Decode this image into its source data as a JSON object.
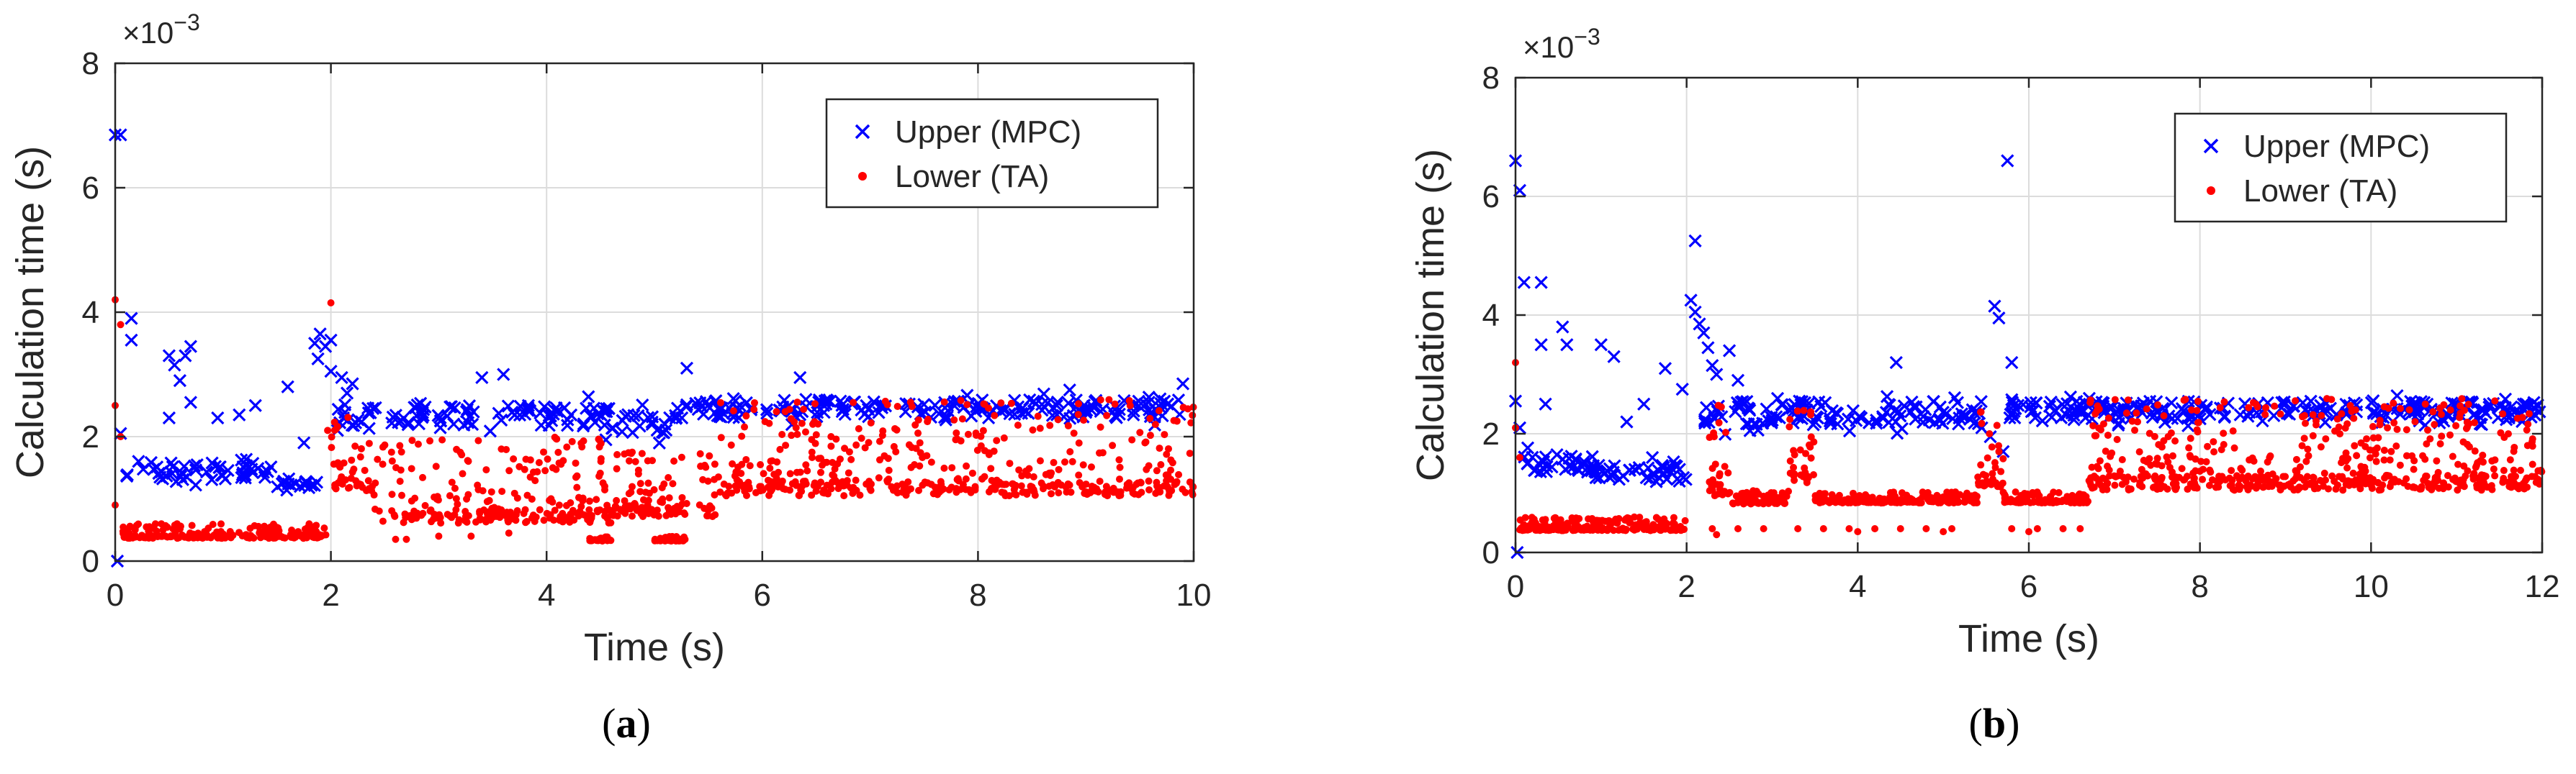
{
  "chart_data": [
    {
      "type": "scatter",
      "panel_label_prefix": "(",
      "panel_label_letter": "a",
      "panel_label_suffix": ")",
      "xlabel": "Time (s)",
      "ylabel": "Calculation time (s)",
      "exponent_label": "×10",
      "exponent_power": "−3",
      "xlim": [
        0,
        10
      ],
      "ylim": [
        0,
        8
      ],
      "xticks": [
        0,
        2,
        4,
        6,
        8,
        10
      ],
      "yticks": [
        0,
        2,
        4,
        6,
        8
      ],
      "grid": true,
      "legend_position": "top-right",
      "series": [
        {
          "name": "Upper (MPC)",
          "marker": "x",
          "color": "#0000ff",
          "segments": [
            {
              "x0": 0.1,
              "x1": 1.45,
              "y": 1.45,
              "spread": 0.35
            },
            {
              "x0": 1.45,
              "x1": 1.9,
              "y": 1.25,
              "spread": 0.15
            },
            {
              "x0": 2.05,
              "x1": 4.6,
              "y": 2.35,
              "spread": 0.35
            },
            {
              "x0": 4.6,
              "x1": 5.2,
              "y": 2.2,
              "spread": 0.35
            },
            {
              "x0": 5.2,
              "x1": 10,
              "y": 2.45,
              "spread": 0.3
            }
          ],
          "extra_points": [
            [
              0.0,
              6.85
            ],
            [
              0.05,
              6.85
            ],
            [
              0.15,
              3.9
            ],
            [
              0.15,
              3.55
            ],
            [
              0.05,
              2.05
            ],
            [
              0.5,
              3.3
            ],
            [
              0.55,
              3.15
            ],
            [
              0.65,
              3.3
            ],
            [
              0.7,
              3.45
            ],
            [
              0.6,
              2.9
            ],
            [
              0.5,
              2.3
            ],
            [
              0.7,
              2.55
            ],
            [
              0.95,
              2.3
            ],
            [
              1.15,
              2.35
            ],
            [
              1.3,
              2.5
            ],
            [
              1.6,
              2.8
            ],
            [
              1.75,
              1.9
            ],
            [
              1.85,
              3.5
            ],
            [
              1.9,
              3.65
            ],
            [
              1.95,
              3.45
            ],
            [
              2.0,
              3.55
            ],
            [
              1.88,
              3.25
            ],
            [
              2.0,
              3.05
            ],
            [
              2.1,
              2.95
            ],
            [
              2.2,
              2.85
            ],
            [
              2.15,
              2.7
            ],
            [
              3.4,
              2.95
            ],
            [
              3.6,
              3.0
            ],
            [
              5.3,
              3.1
            ],
            [
              4.55,
              1.95
            ],
            [
              6.35,
              2.95
            ],
            [
              8.85,
              2.75
            ],
            [
              9.9,
              2.85
            ],
            [
              0.02,
              0.0
            ]
          ]
        },
        {
          "name": "Lower (TA)",
          "marker": "dot",
          "color": "#ff0000",
          "segments": [
            {
              "x0": 0.05,
              "x1": 1.98,
              "y": 0.45,
              "spread": 0.15
            },
            {
              "x0": 2.0,
              "x1": 2.4,
              "y": 1.6,
              "spread": 0.9
            },
            {
              "x0": 2.4,
              "x1": 4.6,
              "y": 1.1,
              "spread": 0.9
            },
            {
              "x0": 4.4,
              "x1": 4.6,
              "y": 0.35,
              "spread": 0.05
            },
            {
              "x0": 5.0,
              "x1": 5.3,
              "y": 0.35,
              "spread": 0.05
            },
            {
              "x0": 4.6,
              "x1": 5.6,
              "y": 1.1,
              "spread": 0.7
            },
            {
              "x0": 5.6,
              "x1": 10,
              "y": 1.6,
              "spread": 1.0
            }
          ],
          "extra_points": [
            [
              0.0,
              4.2
            ],
            [
              0.0,
              2.5
            ],
            [
              0.05,
              3.8
            ],
            [
              0.05,
              2.0
            ],
            [
              0.0,
              0.9
            ],
            [
              2.0,
              4.15
            ],
            [
              1.97,
              2.1
            ],
            [
              2.6,
              0.35
            ],
            [
              2.7,
              0.35
            ],
            [
              3.0,
              0.4
            ],
            [
              3.3,
              0.4
            ],
            [
              3.65,
              0.45
            ]
          ]
        }
      ]
    },
    {
      "type": "scatter",
      "panel_label_prefix": "(",
      "panel_label_letter": "b",
      "panel_label_suffix": ")",
      "xlabel": "Time (s)",
      "ylabel": "Calculation time (s)",
      "exponent_label": "×10",
      "exponent_power": "−3",
      "xlim": [
        0,
        12
      ],
      "ylim": [
        0,
        8
      ],
      "xticks": [
        0,
        2,
        4,
        6,
        8,
        10,
        12
      ],
      "yticks": [
        0,
        2,
        4,
        6,
        8
      ],
      "grid": true,
      "legend_position": "top-right",
      "series": [
        {
          "name": "Upper (MPC)",
          "marker": "x",
          "color": "#0000ff",
          "segments": [
            {
              "x0": 0.1,
              "x1": 0.9,
              "y": 1.5,
              "spread": 0.3
            },
            {
              "x0": 0.9,
              "x1": 2.0,
              "y": 1.35,
              "spread": 0.25
            },
            {
              "x0": 2.2,
              "x1": 5.45,
              "y": 2.35,
              "spread": 0.4
            },
            {
              "x0": 5.75,
              "x1": 12,
              "y": 2.4,
              "spread": 0.3
            }
          ],
          "extra_points": [
            [
              0.0,
              6.6
            ],
            [
              0.05,
              6.1
            ],
            [
              0.1,
              4.55
            ],
            [
              0.3,
              4.55
            ],
            [
              0.3,
              3.5
            ],
            [
              0.55,
              3.8
            ],
            [
              0.6,
              3.5
            ],
            [
              0.35,
              2.5
            ],
            [
              0.0,
              2.55
            ],
            [
              0.05,
              2.1
            ],
            [
              1.0,
              3.5
            ],
            [
              1.15,
              3.3
            ],
            [
              1.5,
              2.5
            ],
            [
              1.3,
              2.2
            ],
            [
              1.6,
              1.6
            ],
            [
              1.75,
              3.1
            ],
            [
              1.95,
              2.75
            ],
            [
              2.1,
              5.25
            ],
            [
              2.05,
              4.25
            ],
            [
              2.1,
              4.05
            ],
            [
              2.15,
              3.85
            ],
            [
              2.2,
              3.7
            ],
            [
              2.25,
              3.45
            ],
            [
              2.3,
              3.15
            ],
            [
              2.35,
              3.0
            ],
            [
              2.5,
              3.4
            ],
            [
              2.6,
              2.9
            ],
            [
              4.45,
              3.2
            ],
            [
              5.45,
              2.1
            ],
            [
              5.6,
              4.15
            ],
            [
              5.65,
              3.95
            ],
            [
              5.75,
              6.6
            ],
            [
              5.8,
              3.2
            ],
            [
              5.55,
              1.95
            ],
            [
              5.7,
              1.7
            ],
            [
              0.02,
              0.0
            ]
          ]
        },
        {
          "name": "Lower (TA)",
          "marker": "dot",
          "color": "#ff0000",
          "segments": [
            {
              "x0": 0.05,
              "x1": 2.0,
              "y": 0.45,
              "spread": 0.15
            },
            {
              "x0": 2.25,
              "x1": 2.5,
              "y": 1.5,
              "spread": 1.0
            },
            {
              "x0": 2.5,
              "x1": 3.2,
              "y": 0.9,
              "spread": 0.15
            },
            {
              "x0": 3.2,
              "x1": 3.5,
              "y": 1.6,
              "spread": 0.8
            },
            {
              "x0": 3.5,
              "x1": 5.4,
              "y": 0.9,
              "spread": 0.12
            },
            {
              "x0": 5.4,
              "x1": 5.7,
              "y": 1.6,
              "spread": 0.9
            },
            {
              "x0": 5.7,
              "x1": 6.7,
              "y": 0.9,
              "spread": 0.12
            },
            {
              "x0": 6.7,
              "x1": 12,
              "y": 1.6,
              "spread": 1.0
            }
          ],
          "extra_points": [
            [
              0.0,
              3.2
            ],
            [
              0.0,
              2.1
            ],
            [
              0.05,
              1.6
            ],
            [
              2.3,
              0.4
            ],
            [
              2.6,
              0.4
            ],
            [
              2.9,
              0.4
            ],
            [
              3.3,
              0.4
            ],
            [
              3.6,
              0.4
            ],
            [
              3.9,
              0.4
            ],
            [
              4.2,
              0.4
            ],
            [
              4.5,
              0.4
            ],
            [
              4.8,
              0.4
            ],
            [
              5.1,
              0.4
            ],
            [
              5.8,
              0.4
            ],
            [
              6.1,
              0.4
            ],
            [
              6.4,
              0.4
            ],
            [
              6.6,
              0.4
            ],
            [
              2.35,
              0.3
            ],
            [
              4.0,
              0.35
            ],
            [
              5.0,
              0.35
            ],
            [
              6.0,
              0.35
            ]
          ]
        }
      ]
    }
  ]
}
